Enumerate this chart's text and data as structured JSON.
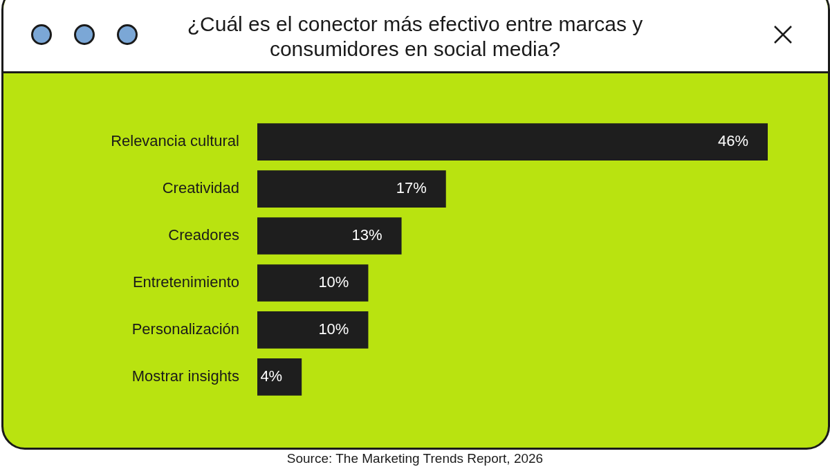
{
  "chart_data": {
    "type": "bar",
    "orientation": "horizontal",
    "title": "¿Cuál es el conector más efectivo entre marcas y consumidores en social media?",
    "categories": [
      "Relevancia cultural",
      "Creatividad",
      "Creadores",
      "Entretenimiento",
      "Personalización",
      "Mostrar insights"
    ],
    "values": [
      46,
      17,
      13,
      10,
      10,
      4
    ],
    "color": "#1e1e1e",
    "value_labels": [
      "46%",
      "17%",
      "13%",
      "10%",
      "10%",
      "4%"
    ],
    "tick_labels": "y",
    "grid": false,
    "legend": false,
    "annotations": [
      "Source: The Marketing Trends Report, 2026"
    ]
  }
}
